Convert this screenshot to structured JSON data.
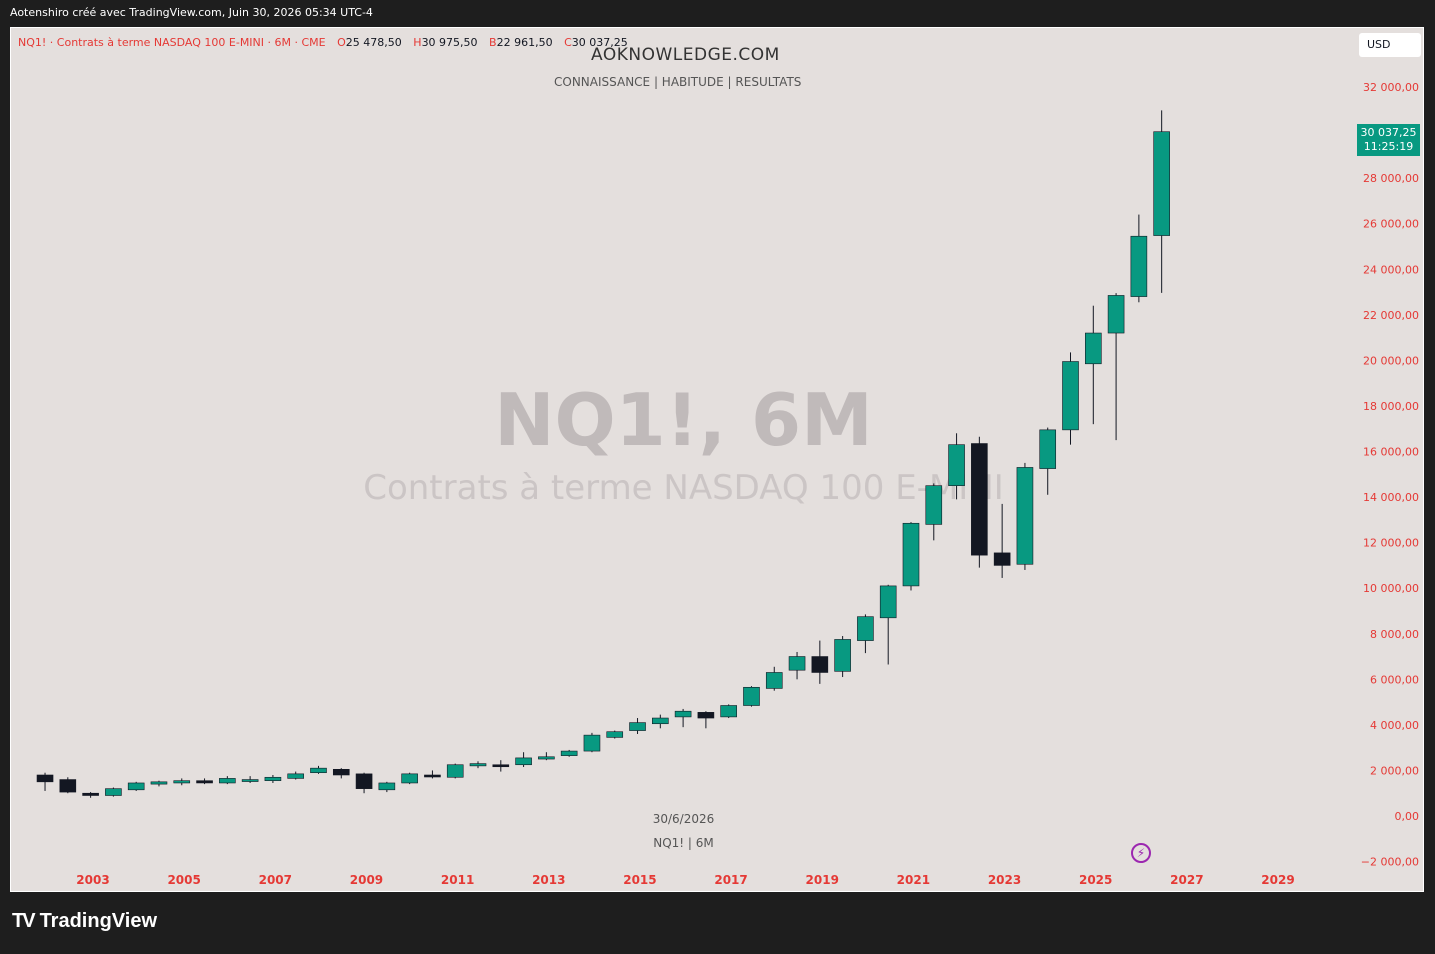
{
  "header": {
    "title": "Aotenshiro créé avec TradingView.com, Juin 30, 2026 05:34 UTC-4"
  },
  "legend": {
    "symbol": "NQ1! · Contrats à terme NASDAQ 100 E-MINI · 6M · CME",
    "o_key": "O",
    "o_val": "25 478,50",
    "h_key": "H",
    "h_val": "30 975,50",
    "b_key": "B",
    "b_val": "22 961,50",
    "c_key": "C",
    "c_val": "30 037,25"
  },
  "overlay": {
    "site": "AOKNOWLEDGE.COM",
    "tagline": "CONNAISSANCE |  HABITUDE | RESULTATS",
    "watermark": "NQ1!, 6M",
    "watermark_sub": "Contrats à terme NASDAQ 100 E-MINI",
    "date_label": "30/6/2026",
    "symbol_label": "NQ1! | 6M"
  },
  "currency_button": "USD",
  "last_price": {
    "price": "30 037,25",
    "countdown": "11:25:19"
  },
  "brand": {
    "mark": "TV",
    "name": "TradingView"
  },
  "colors": {
    "up": "#089981",
    "down": "#131722",
    "axis_text": "#e53935",
    "background": "#e4dfdd"
  },
  "chart_data": {
    "type": "candlestick",
    "title": "NQ1! · Contrats à terme NASDAQ 100 E-MINI · 6M · CME",
    "ylim": [
      -2500,
      33000
    ],
    "yticks": [
      -2000,
      0,
      2000,
      4000,
      6000,
      8000,
      10000,
      12000,
      14000,
      16000,
      18000,
      20000,
      22000,
      24000,
      26000,
      28000,
      32000
    ],
    "ytick_labels": [
      "−2 000,00",
      "0,00",
      "2 000,00",
      "4 000,00",
      "6 000,00",
      "8 000,00",
      "10 000,00",
      "12 000,00",
      "14 000,00",
      "16 000,00",
      "18 000,00",
      "20 000,00",
      "22 000,00",
      "24 000,00",
      "26 000,00",
      "28 000,00",
      "32 000,00"
    ],
    "xticks": [
      "2003",
      "2005",
      "2007",
      "2009",
      "2011",
      "2013",
      "2015",
      "2017",
      "2019",
      "2021",
      "2023",
      "2025",
      "2027",
      "2029"
    ],
    "x_start_year": 2001.5,
    "x_step_years": 0.5,
    "candles": [
      {
        "o": 1800,
        "h": 1900,
        "l": 1100,
        "c": 1500
      },
      {
        "o": 1600,
        "h": 1700,
        "l": 1000,
        "c": 1050
      },
      {
        "o": 1000,
        "h": 1050,
        "l": 800,
        "c": 900
      },
      {
        "o": 900,
        "h": 1250,
        "l": 850,
        "c": 1200
      },
      {
        "o": 1150,
        "h": 1500,
        "l": 1100,
        "c": 1450
      },
      {
        "o": 1400,
        "h": 1550,
        "l": 1300,
        "c": 1500
      },
      {
        "o": 1450,
        "h": 1650,
        "l": 1350,
        "c": 1550
      },
      {
        "o": 1550,
        "h": 1650,
        "l": 1400,
        "c": 1450
      },
      {
        "o": 1450,
        "h": 1750,
        "l": 1400,
        "c": 1650
      },
      {
        "o": 1550,
        "h": 1750,
        "l": 1450,
        "c": 1600
      },
      {
        "o": 1550,
        "h": 1800,
        "l": 1450,
        "c": 1700
      },
      {
        "o": 1650,
        "h": 1950,
        "l": 1600,
        "c": 1850
      },
      {
        "o": 1900,
        "h": 2200,
        "l": 1850,
        "c": 2100
      },
      {
        "o": 2050,
        "h": 2100,
        "l": 1650,
        "c": 1800
      },
      {
        "o": 1850,
        "h": 1900,
        "l": 1000,
        "c": 1200
      },
      {
        "o": 1150,
        "h": 1500,
        "l": 1050,
        "c": 1450
      },
      {
        "o": 1450,
        "h": 1900,
        "l": 1400,
        "c": 1850
      },
      {
        "o": 1800,
        "h": 2000,
        "l": 1650,
        "c": 1750
      },
      {
        "o": 1700,
        "h": 2300,
        "l": 1650,
        "c": 2250
      },
      {
        "o": 2200,
        "h": 2400,
        "l": 2100,
        "c": 2300
      },
      {
        "o": 2250,
        "h": 2450,
        "l": 1950,
        "c": 2200
      },
      {
        "o": 2250,
        "h": 2800,
        "l": 2150,
        "c": 2550
      },
      {
        "o": 2500,
        "h": 2800,
        "l": 2450,
        "c": 2600
      },
      {
        "o": 2650,
        "h": 2900,
        "l": 2600,
        "c": 2850
      },
      {
        "o": 2850,
        "h": 3650,
        "l": 2800,
        "c": 3550
      },
      {
        "o": 3450,
        "h": 3750,
        "l": 3400,
        "c": 3700
      },
      {
        "o": 3750,
        "h": 4300,
        "l": 3600,
        "c": 4100
      },
      {
        "o": 4050,
        "h": 4450,
        "l": 3850,
        "c": 4300
      },
      {
        "o": 4350,
        "h": 4700,
        "l": 3900,
        "c": 4600
      },
      {
        "o": 4550,
        "h": 4600,
        "l": 3850,
        "c": 4300
      },
      {
        "o": 4350,
        "h": 4900,
        "l": 4300,
        "c": 4850
      },
      {
        "o": 4850,
        "h": 5700,
        "l": 4800,
        "c": 5650
      },
      {
        "o": 5600,
        "h": 6550,
        "l": 5500,
        "c": 6300
      },
      {
        "o": 6400,
        "h": 7200,
        "l": 6000,
        "c": 7000
      },
      {
        "o": 7000,
        "h": 7700,
        "l": 5800,
        "c": 6300
      },
      {
        "o": 6350,
        "h": 7900,
        "l": 6100,
        "c": 7750
      },
      {
        "o": 7700,
        "h": 8850,
        "l": 7150,
        "c": 8750
      },
      {
        "o": 8700,
        "h": 10150,
        "l": 6650,
        "c": 10100
      },
      {
        "o": 10100,
        "h": 12900,
        "l": 9900,
        "c": 12850
      },
      {
        "o": 12800,
        "h": 14600,
        "l": 12100,
        "c": 14500
      },
      {
        "o": 14500,
        "h": 16800,
        "l": 13900,
        "c": 16300
      },
      {
        "o": 16350,
        "h": 16650,
        "l": 10900,
        "c": 11450
      },
      {
        "o": 11550,
        "h": 13700,
        "l": 10450,
        "c": 11000
      },
      {
        "o": 11050,
        "h": 15500,
        "l": 10800,
        "c": 15300
      },
      {
        "o": 15250,
        "h": 17050,
        "l": 14100,
        "c": 16950
      },
      {
        "o": 16950,
        "h": 20350,
        "l": 16300,
        "c": 19950
      },
      {
        "o": 19850,
        "h": 22400,
        "l": 17200,
        "c": 21200
      },
      {
        "o": 21200,
        "h": 22950,
        "l": 16500,
        "c": 22850
      },
      {
        "o": 22800,
        "h": 26400,
        "l": 22550,
        "c": 25450
      },
      {
        "o": 25478.5,
        "h": 30975.5,
        "l": 22961.5,
        "c": 30037.25
      }
    ]
  }
}
